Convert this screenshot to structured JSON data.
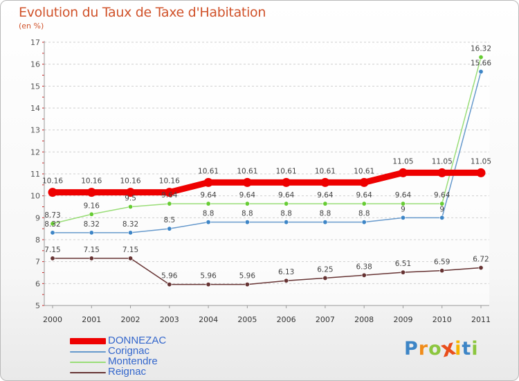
{
  "title": "Evolution du Taux de Taxe d'Habitation",
  "subtitle": "(en %)",
  "chart_data": {
    "type": "line",
    "title": "Evolution du Taux de Taxe d'Habitation",
    "ylabel": "(en %)",
    "xlabel": "",
    "ylim": [
      5,
      17
    ],
    "y_ticks": [
      5,
      6,
      7,
      8,
      9,
      10,
      11,
      12,
      13,
      14,
      15,
      16,
      17
    ],
    "categories": [
      "2000",
      "2001",
      "2002",
      "2003",
      "2004",
      "2005",
      "2006",
      "2007",
      "2008",
      "2009",
      "2010",
      "2011"
    ],
    "grid": "horizontal dashed",
    "legend_position": "bottom-left",
    "series": [
      {
        "name": "DONNEZAC",
        "color": "#ee0000",
        "emphasis": true,
        "values": [
          10.16,
          10.16,
          10.16,
          10.16,
          10.61,
          10.61,
          10.61,
          10.61,
          10.61,
          11.05,
          11.05,
          11.05
        ],
        "labels": [
          "10.16",
          "10.16",
          "10.16",
          "10.16",
          "10.61",
          "10.61",
          "10.61",
          "10.61",
          "10.61",
          "11.05",
          "11.05",
          "11.05"
        ]
      },
      {
        "name": "Corignac",
        "color": "#6699cc",
        "marker_color": "#3d85c6",
        "values": [
          8.32,
          8.32,
          8.32,
          8.5,
          8.8,
          8.8,
          8.8,
          8.8,
          8.8,
          9,
          9,
          15.66
        ],
        "labels": [
          "8.32",
          "8.32",
          "8.32",
          "8.5",
          "8.8",
          "8.8",
          "8.8",
          "8.8",
          "8.8",
          "9",
          "9",
          "15.66"
        ]
      },
      {
        "name": "Montendre",
        "color": "#99dd77",
        "marker_color": "#66cc33",
        "values": [
          8.73,
          9.16,
          9.5,
          9.64,
          9.64,
          9.64,
          9.64,
          9.64,
          9.64,
          9.64,
          9.64,
          16.32
        ],
        "labels": [
          "8.73",
          "9.16",
          "9.5",
          "9.64",
          "9.64",
          "9.64",
          "9.64",
          "9.64",
          "9.64",
          "9.64",
          "9.64",
          "16.32"
        ]
      },
      {
        "name": "Reignac",
        "color": "#663333",
        "marker_color": "#663333",
        "values": [
          7.15,
          7.15,
          7.15,
          5.96,
          5.96,
          5.96,
          6.13,
          6.25,
          6.38,
          6.51,
          6.59,
          6.72
        ],
        "labels": [
          "7.15",
          "7.15",
          "7.15",
          "5.96",
          "5.96",
          "5.96",
          "6.13",
          "6.25",
          "6.38",
          "6.51",
          "6.59",
          "6.72"
        ]
      }
    ]
  },
  "legend": [
    {
      "label": "DONNEZAC",
      "color": "#ee0000",
      "text_color": "#3366cc"
    },
    {
      "label": "Corignac",
      "color": "#6699cc",
      "text_color": "#3366cc"
    },
    {
      "label": "Montendre",
      "color": "#99dd77",
      "text_color": "#3366cc"
    },
    {
      "label": "Reignac",
      "color": "#663333",
      "text_color": "#3366cc"
    }
  ],
  "logo": {
    "letters": [
      "P",
      "r",
      "o",
      "x",
      "i",
      "t",
      "i"
    ],
    "colors": [
      "#3d85c6",
      "#f08c1a",
      "#8cc63f",
      "#e94e1b",
      "#f5b400",
      "#3d85c6",
      "#8cc63f"
    ]
  }
}
